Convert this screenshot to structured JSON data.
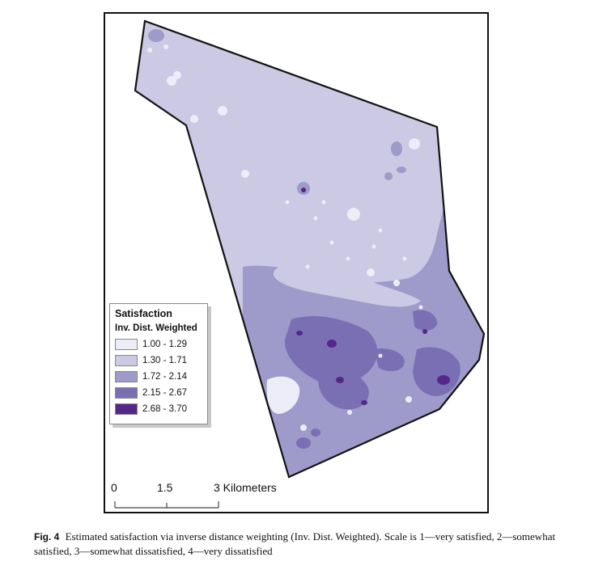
{
  "legend": {
    "title": "Satisfaction",
    "subtitle": "Inv. Dist. Weighted",
    "classes": [
      {
        "label": "1.00 - 1.29",
        "color": "#ededf7"
      },
      {
        "label": "1.30 - 1.71",
        "color": "#cbc9e3"
      },
      {
        "label": "1.72 - 2.14",
        "color": "#9e9aca"
      },
      {
        "label": "2.15 - 2.67",
        "color": "#7b6fb3"
      },
      {
        "label": "2.68 - 3.70",
        "color": "#542788"
      }
    ]
  },
  "scale_bar": {
    "ticks": [
      "0",
      "1.5",
      "3 Kilometers"
    ]
  },
  "caption": {
    "label": "Fig. 4",
    "text": "Estimated satisfaction via inverse distance weighting (Inv. Dist. Weighted). Scale is 1—very satisfied, 2—somewhat satisfied, 3—somewhat dissatisfied, 4—very dissatisfied"
  }
}
